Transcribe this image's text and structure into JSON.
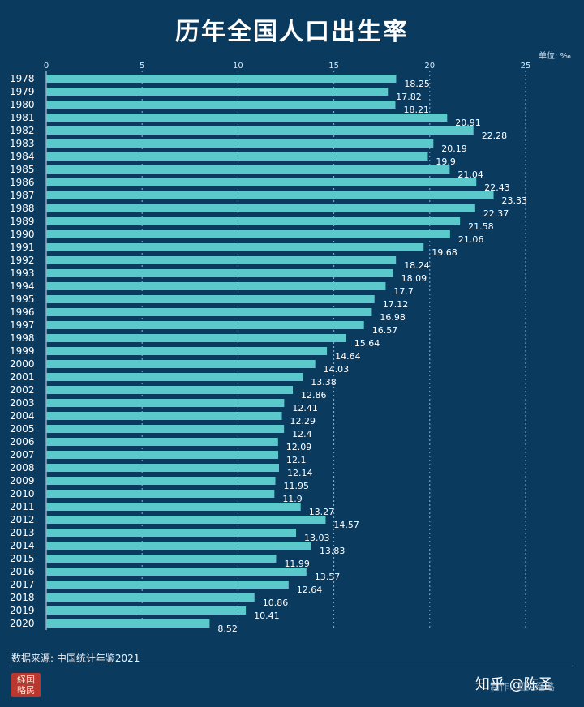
{
  "title": "历年全国人口出生率",
  "unit": "单位: ‰",
  "source": "数据来源: 中国统计年鉴2021",
  "seal_text": "经国略民",
  "watermark_handle": "知乎 @陈圣",
  "watermark_credit": "制作: 国民经略",
  "colors": {
    "background": "#0b3a5f",
    "bar": "#5bc8cc"
  },
  "chart_data": {
    "type": "bar",
    "orientation": "horizontal",
    "title": "历年全国人口出生率",
    "unit": "‰",
    "xlim": [
      0,
      25
    ],
    "xticks": [
      0,
      5,
      10,
      15,
      20,
      25
    ],
    "grid": "vertical dashed",
    "categories": [
      "1978",
      "1979",
      "1980",
      "1981",
      "1982",
      "1983",
      "1984",
      "1985",
      "1986",
      "1987",
      "1988",
      "1989",
      "1990",
      "1991",
      "1992",
      "1993",
      "1994",
      "1995",
      "1996",
      "1997",
      "1998",
      "1999",
      "2000",
      "2001",
      "2002",
      "2003",
      "2004",
      "2005",
      "2006",
      "2007",
      "2008",
      "2009",
      "2010",
      "2011",
      "2012",
      "2013",
      "2014",
      "2015",
      "2016",
      "2017",
      "2018",
      "2019",
      "2020"
    ],
    "values": [
      18.25,
      17.82,
      18.21,
      20.91,
      22.28,
      20.19,
      19.9,
      21.04,
      22.43,
      23.33,
      22.37,
      21.58,
      21.06,
      19.68,
      18.24,
      18.09,
      17.7,
      17.12,
      16.98,
      16.57,
      15.64,
      14.64,
      14.03,
      13.38,
      12.86,
      12.41,
      12.29,
      12.4,
      12.09,
      12.1,
      12.14,
      11.95,
      11.9,
      13.27,
      14.57,
      13.03,
      13.83,
      11.99,
      13.57,
      12.64,
      10.86,
      10.41,
      8.52
    ]
  }
}
